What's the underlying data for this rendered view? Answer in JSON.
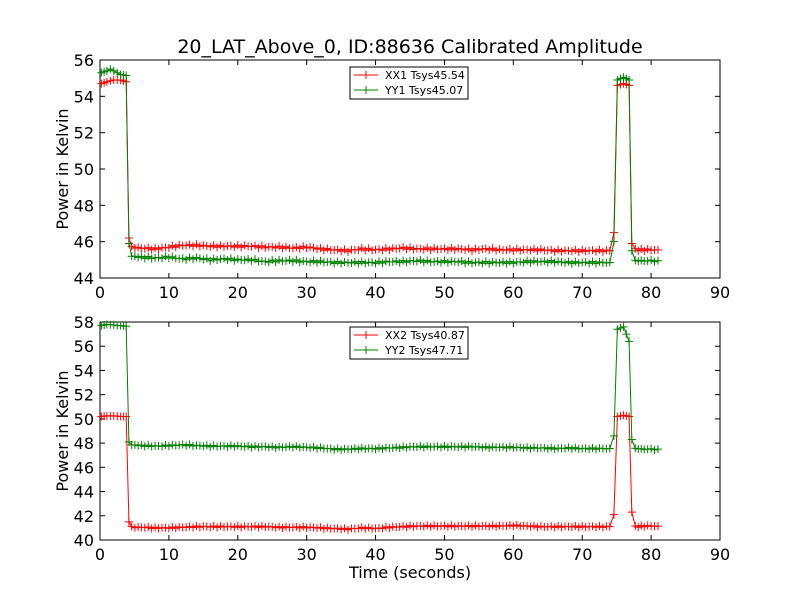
{
  "title": "20_LAT_Above_0, ID:88636 Calibrated Amplitude",
  "colors": {
    "xx": "#ff0000",
    "yy": "#008000"
  },
  "chart_data": [
    {
      "type": "line",
      "ylabel": "Power in Kelvin",
      "xlabel": "",
      "xlim": [
        0,
        90
      ],
      "ylim": [
        44,
        56
      ],
      "xticks": [
        "0",
        "10",
        "20",
        "30",
        "40",
        "50",
        "60",
        "70",
        "80",
        "90"
      ],
      "yticks": [
        "44",
        "46",
        "48",
        "50",
        "52",
        "54",
        "56"
      ],
      "grid": false,
      "legend_position": "top-center",
      "marker": "+",
      "series": [
        {
          "name": "XX1 Tsys45.54",
          "color": "#ff0000",
          "points": [
            [
              0.2,
              54.7
            ],
            [
              1,
              54.8
            ],
            [
              2,
              54.9
            ],
            [
              3,
              54.9
            ],
            [
              3.8,
              54.8
            ],
            [
              4.2,
              46.2
            ],
            [
              4.6,
              45.7
            ],
            [
              6,
              45.65
            ],
            [
              8,
              45.6
            ],
            [
              10,
              45.7
            ],
            [
              12,
              45.8
            ],
            [
              14,
              45.8
            ],
            [
              16,
              45.75
            ],
            [
              18,
              45.75
            ],
            [
              20,
              45.75
            ],
            [
              22,
              45.75
            ],
            [
              24,
              45.7
            ],
            [
              26,
              45.7
            ],
            [
              28,
              45.65
            ],
            [
              30,
              45.7
            ],
            [
              32,
              45.6
            ],
            [
              34,
              45.55
            ],
            [
              36,
              45.5
            ],
            [
              38,
              45.6
            ],
            [
              40,
              45.55
            ],
            [
              42,
              45.6
            ],
            [
              44,
              45.65
            ],
            [
              46,
              45.6
            ],
            [
              48,
              45.6
            ],
            [
              50,
              45.6
            ],
            [
              52,
              45.6
            ],
            [
              54,
              45.55
            ],
            [
              56,
              45.6
            ],
            [
              58,
              45.55
            ],
            [
              60,
              45.55
            ],
            [
              62,
              45.55
            ],
            [
              64,
              45.55
            ],
            [
              66,
              45.5
            ],
            [
              68,
              45.5
            ],
            [
              70,
              45.5
            ],
            [
              72,
              45.5
            ],
            [
              74,
              45.5
            ],
            [
              74.6,
              46.5
            ],
            [
              75.1,
              54.6
            ],
            [
              76,
              54.7
            ],
            [
              76.8,
              54.6
            ],
            [
              77.2,
              45.9
            ],
            [
              77.7,
              45.55
            ],
            [
              79,
              45.55
            ],
            [
              81,
              45.55
            ]
          ]
        },
        {
          "name": "YY1 Tsys45.07",
          "color": "#008000",
          "points": [
            [
              0.2,
              55.3
            ],
            [
              1,
              55.4
            ],
            [
              1.5,
              55.5
            ],
            [
              2,
              55.4
            ],
            [
              3,
              55.2
            ],
            [
              3.8,
              55.15
            ],
            [
              4.2,
              45.9
            ],
            [
              4.6,
              45.2
            ],
            [
              6,
              45.15
            ],
            [
              8,
              45.1
            ],
            [
              10,
              45.15
            ],
            [
              12,
              45.05
            ],
            [
              14,
              45.1
            ],
            [
              16,
              45.0
            ],
            [
              18,
              45.05
            ],
            [
              20,
              45.0
            ],
            [
              22,
              45.0
            ],
            [
              24,
              44.9
            ],
            [
              26,
              44.95
            ],
            [
              28,
              44.95
            ],
            [
              30,
              44.9
            ],
            [
              32,
              44.9
            ],
            [
              34,
              44.85
            ],
            [
              36,
              44.85
            ],
            [
              38,
              44.85
            ],
            [
              40,
              44.85
            ],
            [
              42,
              44.9
            ],
            [
              44,
              44.9
            ],
            [
              46,
              44.95
            ],
            [
              48,
              44.9
            ],
            [
              50,
              44.9
            ],
            [
              52,
              44.9
            ],
            [
              54,
              44.85
            ],
            [
              56,
              44.85
            ],
            [
              58,
              44.85
            ],
            [
              60,
              44.85
            ],
            [
              62,
              44.9
            ],
            [
              64,
              44.9
            ],
            [
              66,
              44.9
            ],
            [
              68,
              44.85
            ],
            [
              70,
              44.85
            ],
            [
              72,
              44.85
            ],
            [
              74,
              44.85
            ],
            [
              74.6,
              46.0
            ],
            [
              75.1,
              54.9
            ],
            [
              76,
              55.05
            ],
            [
              76.8,
              54.9
            ],
            [
              77.2,
              45.5
            ],
            [
              77.7,
              44.95
            ],
            [
              79,
              44.95
            ],
            [
              81,
              44.95
            ]
          ]
        }
      ]
    },
    {
      "type": "line",
      "ylabel": "Power in Kelvin",
      "xlabel": "Time (seconds)",
      "xlim": [
        0,
        90
      ],
      "ylim": [
        40,
        58
      ],
      "xticks": [
        "0",
        "10",
        "20",
        "30",
        "40",
        "50",
        "60",
        "70",
        "80",
        "90"
      ],
      "yticks": [
        "40",
        "42",
        "44",
        "46",
        "48",
        "50",
        "52",
        "54",
        "56",
        "58"
      ],
      "grid": false,
      "legend_position": "top-center",
      "marker": "+",
      "series": [
        {
          "name": "XX2 Tsys40.87",
          "color": "#ff0000",
          "points": [
            [
              0.2,
              50.2
            ],
            [
              1,
              50.25
            ],
            [
              2,
              50.25
            ],
            [
              3,
              50.2
            ],
            [
              3.8,
              50.2
            ],
            [
              4.2,
              41.5
            ],
            [
              4.6,
              41.05
            ],
            [
              6,
              41.05
            ],
            [
              8,
              41.0
            ],
            [
              10,
              41.0
            ],
            [
              12,
              41.05
            ],
            [
              14,
              41.1
            ],
            [
              16,
              41.1
            ],
            [
              18,
              41.1
            ],
            [
              20,
              41.1
            ],
            [
              22,
              41.1
            ],
            [
              24,
              41.1
            ],
            [
              26,
              41.05
            ],
            [
              28,
              41.05
            ],
            [
              30,
              41.05
            ],
            [
              32,
              41.0
            ],
            [
              34,
              40.95
            ],
            [
              36,
              40.9
            ],
            [
              38,
              41.0
            ],
            [
              40,
              40.95
            ],
            [
              42,
              41.05
            ],
            [
              44,
              41.1
            ],
            [
              46,
              41.15
            ],
            [
              48,
              41.15
            ],
            [
              50,
              41.15
            ],
            [
              52,
              41.15
            ],
            [
              54,
              41.15
            ],
            [
              56,
              41.15
            ],
            [
              58,
              41.15
            ],
            [
              60,
              41.2
            ],
            [
              62,
              41.15
            ],
            [
              64,
              41.1
            ],
            [
              66,
              41.1
            ],
            [
              68,
              41.1
            ],
            [
              70,
              41.1
            ],
            [
              72,
              41.1
            ],
            [
              74,
              41.1
            ],
            [
              74.6,
              42.1
            ],
            [
              75.1,
              50.2
            ],
            [
              76,
              50.3
            ],
            [
              76.8,
              50.2
            ],
            [
              77.2,
              42.3
            ],
            [
              77.7,
              41.1
            ],
            [
              79,
              41.15
            ],
            [
              81,
              41.15
            ]
          ]
        },
        {
          "name": "YY2 Tsys47.71",
          "color": "#008000",
          "points": [
            [
              0.2,
              57.7
            ],
            [
              1,
              57.8
            ],
            [
              2,
              57.75
            ],
            [
              3,
              57.7
            ],
            [
              3.8,
              57.65
            ],
            [
              4.2,
              48.1
            ],
            [
              4.6,
              47.85
            ],
            [
              6,
              47.8
            ],
            [
              8,
              47.75
            ],
            [
              10,
              47.8
            ],
            [
              12,
              47.85
            ],
            [
              14,
              47.8
            ],
            [
              16,
              47.75
            ],
            [
              18,
              47.75
            ],
            [
              20,
              47.75
            ],
            [
              22,
              47.7
            ],
            [
              24,
              47.7
            ],
            [
              26,
              47.65
            ],
            [
              28,
              47.7
            ],
            [
              30,
              47.65
            ],
            [
              32,
              47.6
            ],
            [
              34,
              47.5
            ],
            [
              36,
              47.5
            ],
            [
              38,
              47.55
            ],
            [
              40,
              47.55
            ],
            [
              42,
              47.6
            ],
            [
              44,
              47.65
            ],
            [
              46,
              47.7
            ],
            [
              48,
              47.7
            ],
            [
              50,
              47.7
            ],
            [
              52,
              47.7
            ],
            [
              54,
              47.7
            ],
            [
              56,
              47.65
            ],
            [
              58,
              47.65
            ],
            [
              60,
              47.65
            ],
            [
              62,
              47.6
            ],
            [
              64,
              47.6
            ],
            [
              66,
              47.55
            ],
            [
              68,
              47.6
            ],
            [
              70,
              47.55
            ],
            [
              72,
              47.55
            ],
            [
              74,
              47.55
            ],
            [
              74.6,
              48.6
            ],
            [
              75.1,
              57.4
            ],
            [
              76,
              57.6
            ],
            [
              76.8,
              56.4
            ],
            [
              77.2,
              48.3
            ],
            [
              77.7,
              47.55
            ],
            [
              79,
              47.5
            ],
            [
              81,
              47.5
            ]
          ]
        }
      ]
    }
  ]
}
